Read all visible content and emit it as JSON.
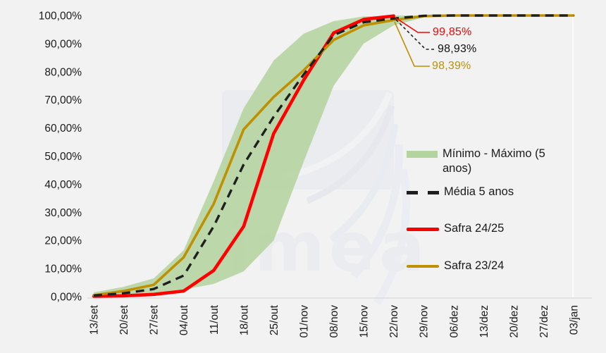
{
  "chart_data": {
    "type": "area",
    "title": "",
    "subtitle": "",
    "categories": [
      "13/set",
      "20/set",
      "27/set",
      "04/out",
      "11/out",
      "18/out",
      "25/out",
      "01/nov",
      "08/nov",
      "15/nov",
      "22/nov",
      "29/nov",
      "06/dez",
      "13/dez",
      "20/dez",
      "27/dez",
      "03/jan"
    ],
    "y_axis": {
      "min": 0,
      "max": 100,
      "tick_step": 10,
      "tick_labels": [
        "100,00%",
        "90,00%",
        "80,00%",
        "70,00%",
        "60,00%",
        "50,00%",
        "40,00%",
        "30,00%",
        "20,00%",
        "10,00%",
        "0,00%"
      ],
      "tick_values": [
        100,
        90,
        80,
        70,
        60,
        50,
        40,
        30,
        20,
        10,
        0
      ]
    },
    "grid": "off",
    "legend_position": "right",
    "band": {
      "name": "Mínimo - Máximo (5 anos)",
      "color": "#b4d49f",
      "min": [
        0,
        0.3,
        0.8,
        2.5,
        4.5,
        9,
        20,
        48,
        75,
        90,
        96.5,
        99.3,
        100,
        100,
        100,
        100,
        100
      ],
      "max": [
        1.5,
        3.5,
        6.5,
        16.5,
        41,
        67,
        84,
        93.5,
        98,
        99.7,
        100,
        100,
        100,
        100,
        100,
        100,
        100
      ]
    },
    "series": [
      {
        "name": "Média 5 anos",
        "style": "dashed",
        "color": "#1f1f1f",
        "values": [
          0.4,
          1.2,
          2.7,
          7.5,
          25,
          47,
          64,
          79,
          93,
          97.6,
          98.93,
          99.9,
          100,
          100,
          100,
          100,
          100
        ]
      },
      {
        "name": "Safra 24/25",
        "style": "solid",
        "color": "#fe0000",
        "values": [
          0.15,
          0.3,
          0.8,
          2,
          9.3,
          25,
          58,
          77,
          93.8,
          98.6,
          99.85,
          null,
          null,
          null,
          null,
          null,
          null
        ]
      },
      {
        "name": "Safra 23/24",
        "style": "solid",
        "color": "#bf9000",
        "values": [
          0.5,
          2,
          4.2,
          14,
          33,
          59.5,
          71,
          80.5,
          91.3,
          96.5,
          98.39,
          99.8,
          100,
          100,
          100,
          100,
          100
        ]
      }
    ],
    "annotations": [
      {
        "text": "99,85%",
        "series": "Safra 24/25",
        "at": "22/nov",
        "color": "#fe0000"
      },
      {
        "text": "98,93%",
        "series": "Média 5 anos",
        "at": "22/nov",
        "color": "#111111"
      },
      {
        "text": "98,39%",
        "series": "Safra 23/24",
        "at": "22/nov",
        "color": "#bf9000"
      }
    ]
  },
  "watermark": {
    "text": "imea"
  }
}
